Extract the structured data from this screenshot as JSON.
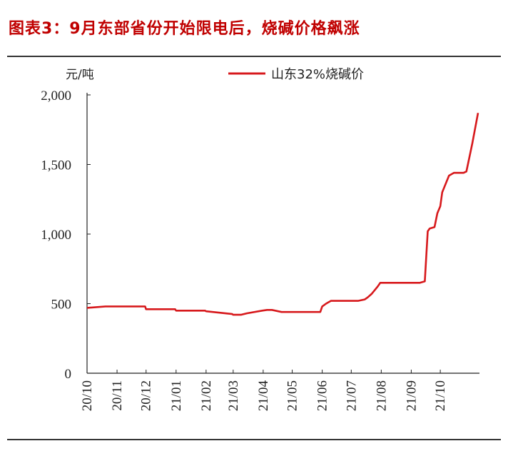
{
  "header": {
    "title": "图表3：9月东部省份开始限电后，烧碱价格飙涨"
  },
  "chart_data": {
    "type": "line",
    "title": "图表3：9月东部省份开始限电后，烧碱价格飙涨",
    "ylabel": "元/吨",
    "xlabel": "",
    "ylim": [
      0,
      2000
    ],
    "yticks": [
      0,
      500,
      1000,
      1500,
      2000
    ],
    "ytick_labels": [
      "0",
      "500",
      "1,000",
      "1,500",
      "2,000"
    ],
    "xtick_labels": [
      "20/10",
      "20/11",
      "20/12",
      "21/01",
      "21/02",
      "21/03",
      "21/04",
      "21/05",
      "21/06",
      "21/07",
      "21/08",
      "21/09",
      "21/10"
    ],
    "x_range": [
      "2020-10-01",
      "2021-11-09"
    ],
    "grid": false,
    "legend_position": "top",
    "color": "#d7191c",
    "series": [
      {
        "name": "山东32%烧碱价",
        "x": [
          "2020-10-01",
          "2020-10-20",
          "2020-11-01",
          "2020-11-30",
          "2020-12-01",
          "2020-12-31",
          "2021-01-01",
          "2021-01-31",
          "2021-02-01",
          "2021-02-28",
          "2021-03-01",
          "2021-03-09",
          "2021-03-15",
          "2021-03-31",
          "2021-04-05",
          "2021-04-10",
          "2021-04-20",
          "2021-04-30",
          "2021-05-30",
          "2021-06-01",
          "2021-06-05",
          "2021-06-10",
          "2021-06-30",
          "2021-07-08",
          "2021-07-15",
          "2021-07-18",
          "2021-07-22",
          "2021-07-28",
          "2021-07-31",
          "2021-08-10",
          "2021-08-31",
          "2021-09-10",
          "2021-09-15",
          "2021-09-18",
          "2021-09-20",
          "2021-09-25",
          "2021-09-28",
          "2021-10-01",
          "2021-10-03",
          "2021-10-10",
          "2021-10-15",
          "2021-10-18",
          "2021-10-22",
          "2021-10-25",
          "2021-10-28",
          "2021-11-03",
          "2021-11-09"
        ],
        "y": [
          470,
          480,
          480,
          480,
          460,
          460,
          450,
          450,
          445,
          425,
          420,
          420,
          430,
          450,
          455,
          455,
          440,
          440,
          440,
          480,
          500,
          520,
          520,
          520,
          530,
          545,
          570,
          620,
          650,
          650,
          650,
          650,
          660,
          1020,
          1040,
          1050,
          1150,
          1200,
          1300,
          1420,
          1440,
          1440,
          1440,
          1440,
          1450,
          1650,
          1870
        ]
      }
    ]
  }
}
